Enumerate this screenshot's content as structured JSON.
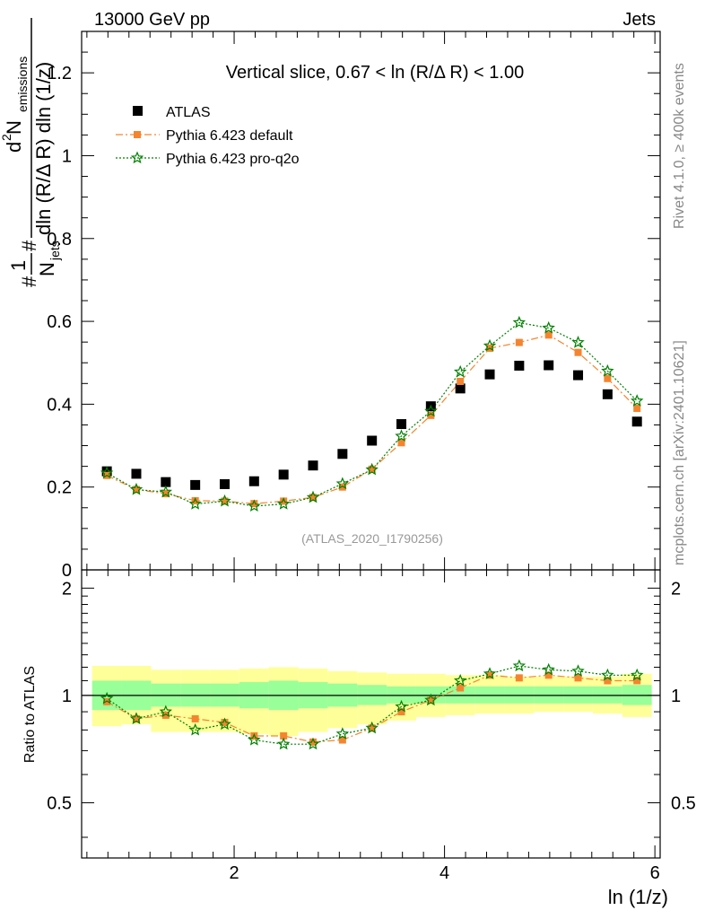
{
  "header": {
    "energy_label": "13000 GeV pp",
    "process_label": "Jets",
    "rivet_label": "Rivet 4.1.0, ≥ 400k events",
    "mcplots_label": "mcplots.cern.ch [arXiv:2401.10621]",
    "analysis_label": "(ATLAS_2020_I1790256)"
  },
  "upper_ylabel": {
    "prefix": "#",
    "numerator_frac": "1",
    "denominator_frac": "N",
    "denominator_sub": "jets",
    "hash2": "#",
    "num_main": "d",
    "num_sup": "2",
    "num_rest": " N",
    "num_sub": "emissions",
    "den_main": "dln (R/Δ R) dln (1/z)"
  },
  "colors": {
    "atlas": "#000000",
    "default": "#f5842f",
    "proq2o": "#008000",
    "band_inner": "#99ff99",
    "band_outer": "#ffff99"
  },
  "chart_data": [
    {
      "type": "scatter",
      "title": "Vertical slice, 0.67 < ln (R/Δ R) < 1.00",
      "xlabel": "ln (1/z)",
      "ylabel": "1/N_jets d²N_emissions / dln(R/ΔR) dln(1/z)",
      "xlim": [
        0.55,
        6.05
      ],
      "ylim": [
        0,
        1.3
      ],
      "x_ticks": [
        2,
        4,
        6
      ],
      "y_ticks": [
        0.2,
        0.4,
        0.6,
        0.8,
        1,
        1.2
      ],
      "y_tick_labels": [
        "0.2",
        "0.4",
        "0.6",
        "0.8",
        "1",
        "1.2"
      ],
      "y_zero_label": "0",
      "legend_position": "top-left",
      "x": [
        0.79,
        1.07,
        1.35,
        1.63,
        1.91,
        2.19,
        2.47,
        2.75,
        3.03,
        3.31,
        3.59,
        3.87,
        4.15,
        4.43,
        4.71,
        4.99,
        5.27,
        5.55,
        5.83
      ],
      "series": [
        {
          "name": "ATLAS",
          "marker": "square",
          "values": [
            0.238,
            0.232,
            0.212,
            0.205,
            0.207,
            0.214,
            0.23,
            0.252,
            0.28,
            0.312,
            0.352,
            0.395,
            0.438,
            0.472,
            0.493,
            0.494,
            0.47,
            0.424,
            0.358
          ]
        },
        {
          "name": "Pythia 6.423 default",
          "marker": "filled-square",
          "line": "dash-dot",
          "values": [
            0.228,
            0.194,
            0.184,
            0.167,
            0.166,
            0.16,
            0.166,
            0.175,
            0.2,
            0.243,
            0.307,
            0.373,
            0.455,
            0.535,
            0.549,
            0.567,
            0.525,
            0.462,
            0.39
          ]
        },
        {
          "name": "Pythia 6.423 pro-q2o",
          "marker": "star",
          "line": "dotted",
          "values": [
            0.234,
            0.194,
            0.188,
            0.159,
            0.166,
            0.154,
            0.159,
            0.175,
            0.208,
            0.242,
            0.323,
            0.383,
            0.478,
            0.541,
            0.597,
            0.584,
            0.549,
            0.48,
            0.408
          ]
        }
      ]
    },
    {
      "type": "line",
      "ylabel": "Ratio to ATLAS",
      "xlim": [
        0.55,
        6.05
      ],
      "ylim": [
        0.35,
        2.25
      ],
      "y_ticks": [
        0.5,
        1,
        2
      ],
      "y_tick_labels": [
        "0.5",
        "1",
        "2"
      ],
      "x": [
        0.79,
        1.07,
        1.35,
        1.63,
        1.91,
        2.19,
        2.47,
        2.75,
        3.03,
        3.31,
        3.59,
        3.87,
        4.15,
        4.43,
        4.71,
        4.99,
        5.27,
        5.55,
        5.83
      ],
      "band_inner": {
        "low": [
          0.91,
          0.91,
          0.93,
          0.93,
          0.93,
          0.92,
          0.91,
          0.92,
          0.93,
          0.94,
          0.95,
          0.95,
          0.95,
          0.95,
          0.95,
          0.95,
          0.95,
          0.95,
          0.94
        ],
        "high": [
          1.1,
          1.1,
          1.08,
          1.08,
          1.08,
          1.09,
          1.1,
          1.09,
          1.08,
          1.07,
          1.06,
          1.06,
          1.06,
          1.06,
          1.06,
          1.06,
          1.06,
          1.06,
          1.07
        ]
      },
      "band_outer": {
        "low": [
          0.82,
          0.83,
          0.79,
          0.79,
          0.79,
          0.78,
          0.77,
          0.79,
          0.81,
          0.83,
          0.85,
          0.87,
          0.88,
          0.89,
          0.89,
          0.9,
          0.9,
          0.89,
          0.87
        ],
        "high": [
          1.21,
          1.21,
          1.18,
          1.18,
          1.18,
          1.19,
          1.2,
          1.19,
          1.17,
          1.16,
          1.15,
          1.15,
          1.14,
          1.14,
          1.13,
          1.13,
          1.13,
          1.13,
          1.15
        ]
      },
      "series": [
        {
          "name": "Pythia 6.423 default",
          "values": [
            0.96,
            0.86,
            0.88,
            0.86,
            0.84,
            0.77,
            0.77,
            0.74,
            0.75,
            0.81,
            0.9,
            0.97,
            1.05,
            1.14,
            1.12,
            1.14,
            1.12,
            1.1,
            1.1
          ]
        },
        {
          "name": "Pythia 6.423 pro-q2o",
          "values": [
            0.98,
            0.86,
            0.9,
            0.8,
            0.83,
            0.75,
            0.73,
            0.73,
            0.78,
            0.81,
            0.93,
            0.97,
            1.1,
            1.15,
            1.21,
            1.18,
            1.17,
            1.14,
            1.14
          ]
        }
      ]
    }
  ]
}
